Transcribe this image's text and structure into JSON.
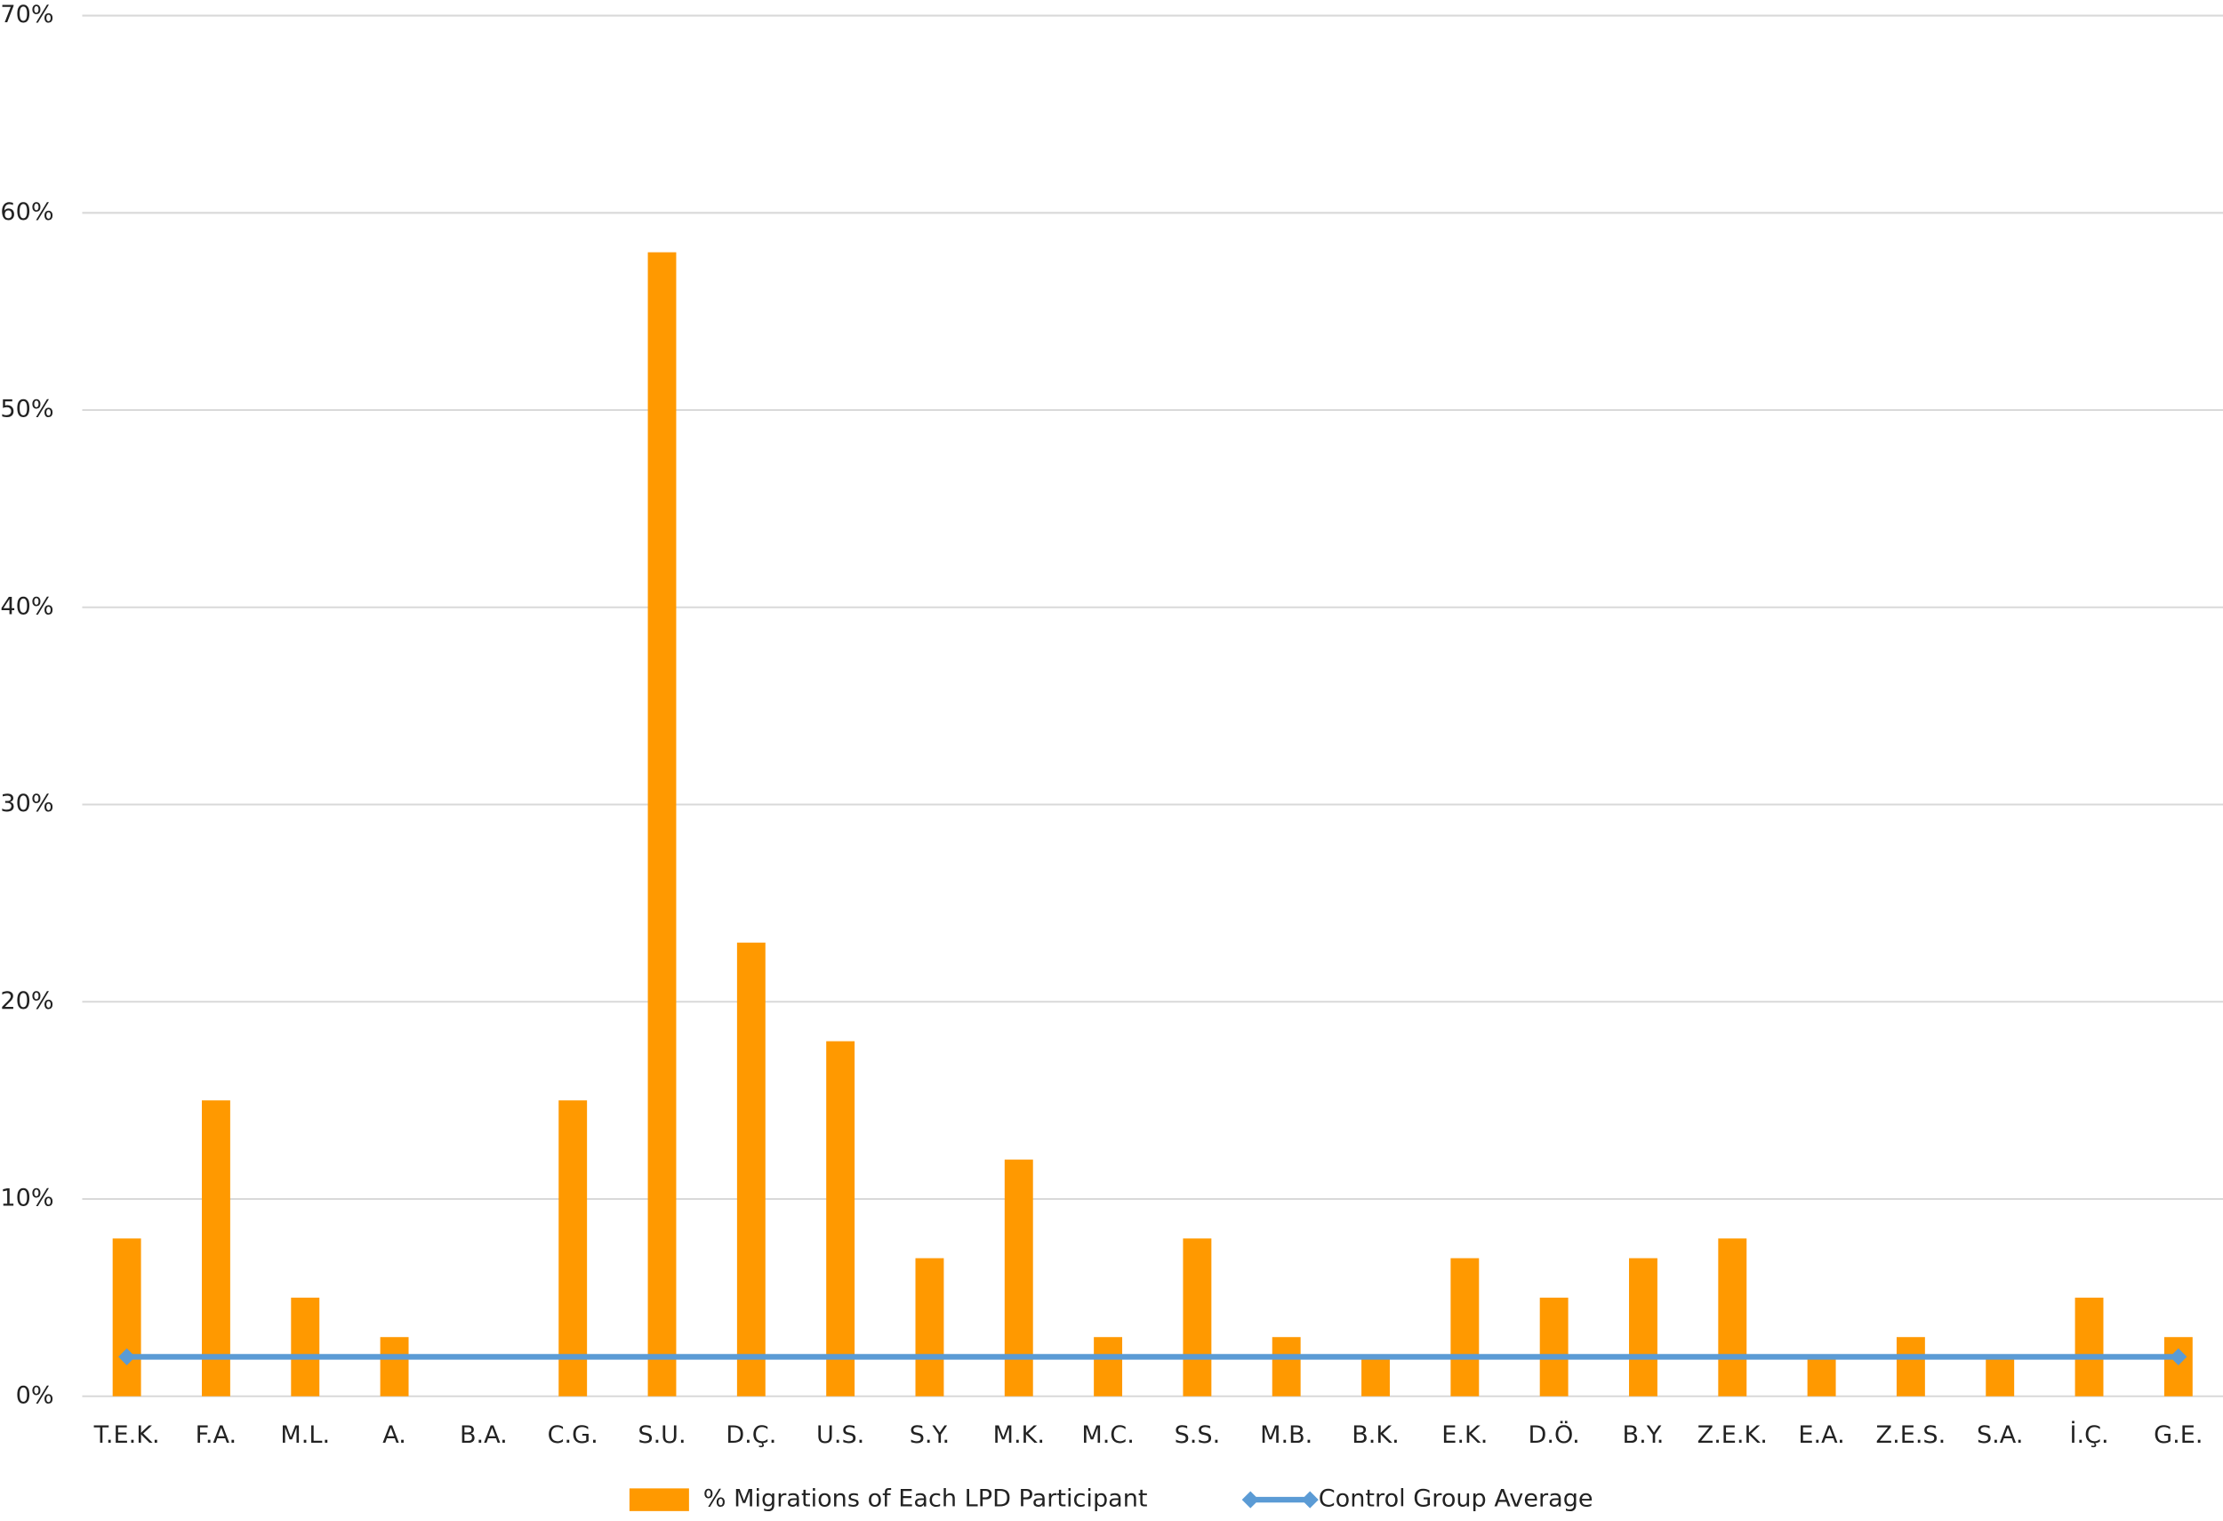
{
  "chart_data": {
    "type": "bar",
    "categories": [
      "T.E.K.",
      "F.A.",
      "M.L.",
      "A.",
      "B.A.",
      "C.G.",
      "S.U.",
      "D.Ç.",
      "U.S.",
      "S.Y.",
      "M.K.",
      "M.C.",
      "S.S.",
      "M.B.",
      "B.K.",
      "E.K.",
      "D.Ö.",
      "B.Y.",
      "Z.E.K.",
      "E.A.",
      "Z.E.S.",
      "S.A.",
      "İ.Ç.",
      "G.E."
    ],
    "series": [
      {
        "name": "% Migrations of Each LPD Participant",
        "type": "bar",
        "color": "#ff9900",
        "values": [
          8,
          15,
          5,
          3,
          0,
          15,
          58,
          23,
          18,
          7,
          12,
          3,
          8,
          3,
          2,
          7,
          5,
          7,
          8,
          2,
          3,
          2,
          5,
          3
        ]
      },
      {
        "name": "Control Group Average",
        "type": "line",
        "color": "#5b9bd5",
        "values": [
          2,
          2,
          2,
          2,
          2,
          2,
          2,
          2,
          2,
          2,
          2,
          2,
          2,
          2,
          2,
          2,
          2,
          2,
          2,
          2,
          2,
          2,
          2,
          2
        ]
      }
    ],
    "ylim": [
      0,
      70
    ],
    "yticks": [
      {
        "value": 0,
        "label": "0%"
      },
      {
        "value": 10,
        "label": "10%"
      },
      {
        "value": 20,
        "label": "20%"
      },
      {
        "value": 30,
        "label": "30%"
      },
      {
        "value": 40,
        "label": "40%"
      },
      {
        "value": 50,
        "label": "50%"
      },
      {
        "value": 60,
        "label": "60%"
      },
      {
        "value": 70,
        "label": "70%"
      }
    ],
    "grid": true,
    "legend": "bottom"
  }
}
